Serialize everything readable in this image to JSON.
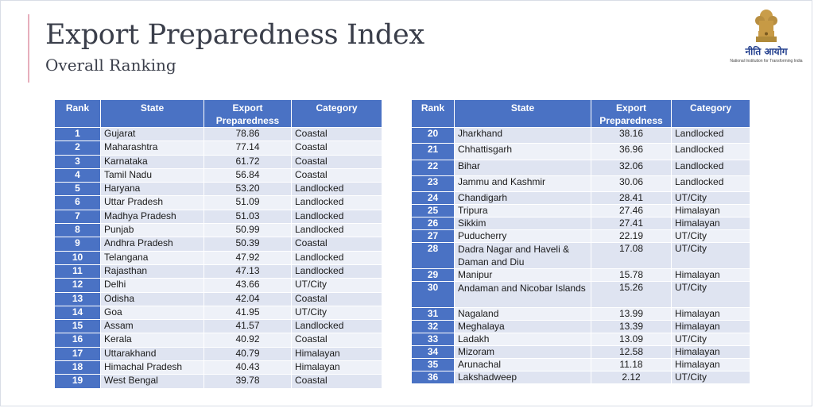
{
  "slide": {
    "title": "Export Preparedness Index",
    "subtitle": "Overall Ranking"
  },
  "logo": {
    "icon": "emblem-icon",
    "hindi_text": "नीति आयोग",
    "english_text": "National Institution for Transforming India"
  },
  "colors": {
    "header_blue": "#4a72c4",
    "row_light": "#eef1f8",
    "row_dark": "#dfe4f1",
    "title_text": "#3a3e4a"
  },
  "columns": [
    "Rank",
    "State",
    "Export Preparedness",
    "Category"
  ],
  "left_table": [
    {
      "rank": "1",
      "state": "Gujarat",
      "score": "78.86",
      "category": "Coastal"
    },
    {
      "rank": "2",
      "state": "Maharashtra",
      "score": "77.14",
      "category": "Coastal"
    },
    {
      "rank": "3",
      "state": "Karnataka",
      "score": "61.72",
      "category": "Coastal"
    },
    {
      "rank": "4",
      "state": "Tamil Nadu",
      "score": "56.84",
      "category": "Coastal"
    },
    {
      "rank": "5",
      "state": "Haryana",
      "score": "53.20",
      "category": "Landlocked"
    },
    {
      "rank": "6",
      "state": "Uttar Pradesh",
      "score": "51.09",
      "category": "Landlocked"
    },
    {
      "rank": "7",
      "state": "Madhya Pradesh",
      "score": "51.03",
      "category": "Landlocked"
    },
    {
      "rank": "8",
      "state": "Punjab",
      "score": "50.99",
      "category": "Landlocked"
    },
    {
      "rank": "9",
      "state": "Andhra Pradesh",
      "score": "50.39",
      "category": "Coastal"
    },
    {
      "rank": "10",
      "state": "Telangana",
      "score": "47.92",
      "category": "Landlocked"
    },
    {
      "rank": "11",
      "state": "Rajasthan",
      "score": "47.13",
      "category": "Landlocked"
    },
    {
      "rank": "12",
      "state": "Delhi",
      "score": "43.66",
      "category": "UT/City"
    },
    {
      "rank": "13",
      "state": "Odisha",
      "score": "42.04",
      "category": "Coastal"
    },
    {
      "rank": "14",
      "state": "Goa",
      "score": "41.95",
      "category": "UT/City"
    },
    {
      "rank": "15",
      "state": "Assam",
      "score": "41.57",
      "category": "Landlocked"
    },
    {
      "rank": "16",
      "state": "Kerala",
      "score": "40.92",
      "category": "Coastal"
    },
    {
      "rank": "17",
      "state": "Uttarakhand",
      "score": "40.79",
      "category": "Himalayan"
    },
    {
      "rank": "18",
      "state": "Himachal Pradesh",
      "score": "40.43",
      "category": "Himalayan"
    },
    {
      "rank": "19",
      "state": "West Bengal",
      "score": "39.78",
      "category": "Coastal"
    }
  ],
  "right_table": [
    {
      "rank": "20",
      "state": "Jharkhand",
      "score": "38.16",
      "category": "Landlocked"
    },
    {
      "rank": "21",
      "state": "Chhattisgarh",
      "score": "36.96",
      "category": "Landlocked"
    },
    {
      "rank": "22",
      "state": "Bihar",
      "score": "32.06",
      "category": "Landlocked"
    },
    {
      "rank": "23",
      "state": "Jammu and Kashmir",
      "score": "30.06",
      "category": "Landlocked"
    },
    {
      "rank": "24",
      "state": "Chandigarh",
      "score": "28.41",
      "category": "UT/City"
    },
    {
      "rank": "25",
      "state": "Tripura",
      "score": "27.46",
      "category": "Himalayan"
    },
    {
      "rank": "26",
      "state": "Sikkim",
      "score": "27.41",
      "category": "Himalayan"
    },
    {
      "rank": "27",
      "state": "Puducherry",
      "score": "22.19",
      "category": "UT/City"
    },
    {
      "rank": "28",
      "state": "Dadra Nagar and Haveli & Daman and Diu",
      "score": "17.08",
      "category": "UT/City"
    },
    {
      "rank": "29",
      "state": "Manipur",
      "score": "15.78",
      "category": "Himalayan"
    },
    {
      "rank": "30",
      "state": "Andaman and Nicobar Islands",
      "score": "15.26",
      "category": "UT/City"
    },
    {
      "rank": "31",
      "state": "Nagaland",
      "score": "13.99",
      "category": "Himalayan"
    },
    {
      "rank": "32",
      "state": "Meghalaya",
      "score": "13.39",
      "category": "Himalayan"
    },
    {
      "rank": "33",
      "state": "Ladakh",
      "score": "13.09",
      "category": "UT/City"
    },
    {
      "rank": "34",
      "state": "Mizoram",
      "score": "12.58",
      "category": "Himalayan"
    },
    {
      "rank": "35",
      "state": "Arunachal",
      "score": "11.18",
      "category": "Himalayan"
    },
    {
      "rank": "36",
      "state": "Lakshadweep",
      "score": "2.12",
      "category": "UT/City"
    }
  ]
}
